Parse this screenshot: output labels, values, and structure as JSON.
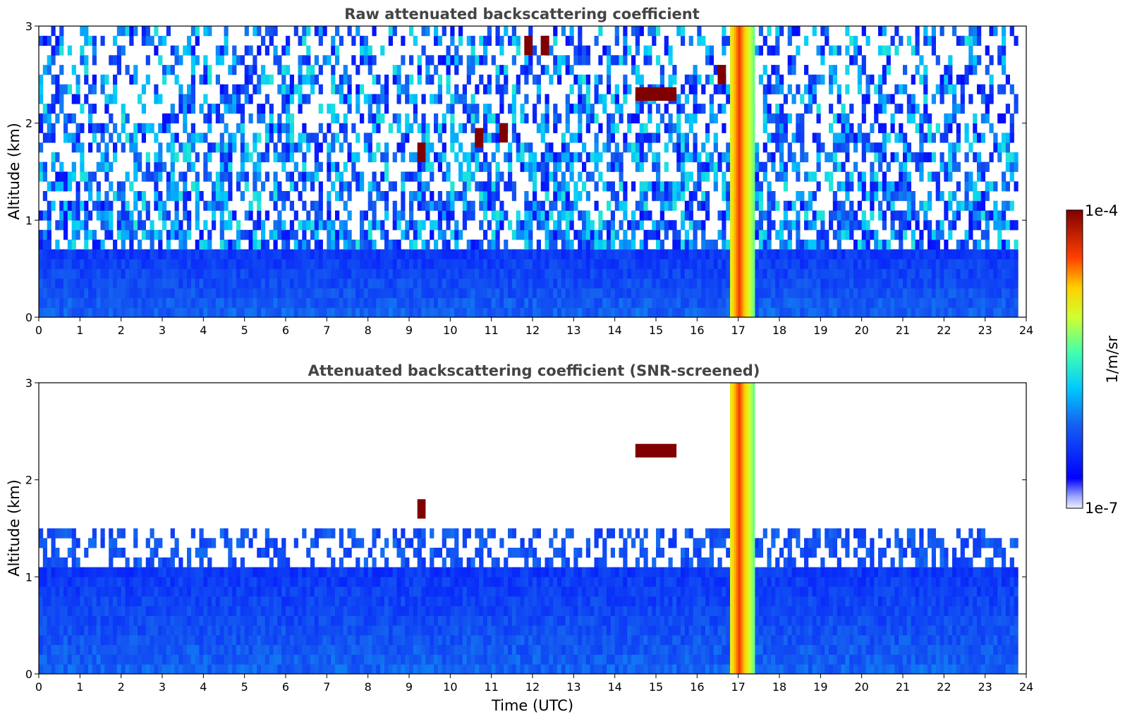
{
  "chart_data": [
    {
      "type": "heatmap",
      "title": "Raw attenuated backscattering coefficient",
      "xlabel": "",
      "ylabel": "Altitude (km)",
      "xlim": [
        0,
        24
      ],
      "ylim": [
        0,
        3
      ],
      "xticks": [
        "0",
        "1",
        "2",
        "3",
        "4",
        "5",
        "6",
        "7",
        "8",
        "9",
        "10",
        "11",
        "12",
        "13",
        "14",
        "15",
        "16",
        "17",
        "18",
        "19",
        "20",
        "21",
        "22",
        "23",
        "24"
      ],
      "yticks": [
        "0",
        "1",
        "2",
        "3"
      ],
      "screened": false,
      "features": [
        {
          "name": "boundary-layer aerosol",
          "t_start": 0,
          "t_end": 23.8,
          "top_km": 0.7,
          "level": 0.3
        },
        {
          "name": "precipitation/cloud column",
          "t_start": 16.8,
          "t_end": 17.4,
          "top_km": 3.0,
          "level": 0.85
        },
        {
          "name": "cloud patch",
          "t": 9.3,
          "alt_km": 1.7,
          "level": 1.0
        },
        {
          "name": "cloud patch",
          "t": 10.7,
          "alt_km": 1.85,
          "level": 1.0
        },
        {
          "name": "cloud patch",
          "t": 11.3,
          "alt_km": 1.9,
          "level": 1.0
        },
        {
          "name": "cloud patch",
          "t": 11.9,
          "alt_km": 2.8,
          "level": 1.0
        },
        {
          "name": "cloud patch",
          "t": 12.3,
          "alt_km": 2.8,
          "level": 1.0
        },
        {
          "name": "cloud layer",
          "t_start": 14.5,
          "t_end": 15.5,
          "alt_km": 2.3,
          "level": 1.0
        },
        {
          "name": "cloud patch",
          "t": 16.6,
          "alt_km": 2.5,
          "level": 1.0
        }
      ]
    },
    {
      "type": "heatmap",
      "title": "Attenuated backscattering coefficient (SNR-screened)",
      "xlabel": "Time (UTC)",
      "ylabel": "Altitude (km)",
      "xlim": [
        0,
        24
      ],
      "ylim": [
        0,
        3
      ],
      "xticks": [
        "0",
        "1",
        "2",
        "3",
        "4",
        "5",
        "6",
        "7",
        "8",
        "9",
        "10",
        "11",
        "12",
        "13",
        "14",
        "15",
        "16",
        "17",
        "18",
        "19",
        "20",
        "21",
        "22",
        "23",
        "24"
      ],
      "yticks": [
        "0",
        "1",
        "2",
        "3"
      ],
      "screened": true,
      "features": [
        {
          "name": "boundary-layer aerosol",
          "t_start": 0,
          "t_end": 23.8,
          "top_km": 1.1,
          "level": 0.3
        },
        {
          "name": "precipitation/cloud column",
          "t_start": 16.8,
          "t_end": 17.4,
          "top_km": 3.0,
          "level": 0.85
        },
        {
          "name": "cloud patch",
          "t": 9.3,
          "alt_km": 1.7,
          "level": 1.0
        },
        {
          "name": "cloud layer",
          "t_start": 14.5,
          "t_end": 15.5,
          "alt_km": 2.3,
          "level": 1.0
        }
      ]
    }
  ],
  "colorbar": {
    "min_label": "1e-7",
    "max_label": "1e-4",
    "unit_label": "1/m/sr",
    "colormap": "jet"
  },
  "colors": {
    "low": "#0a22e6",
    "mid": "#21a8f0",
    "high": "#8b0000"
  }
}
